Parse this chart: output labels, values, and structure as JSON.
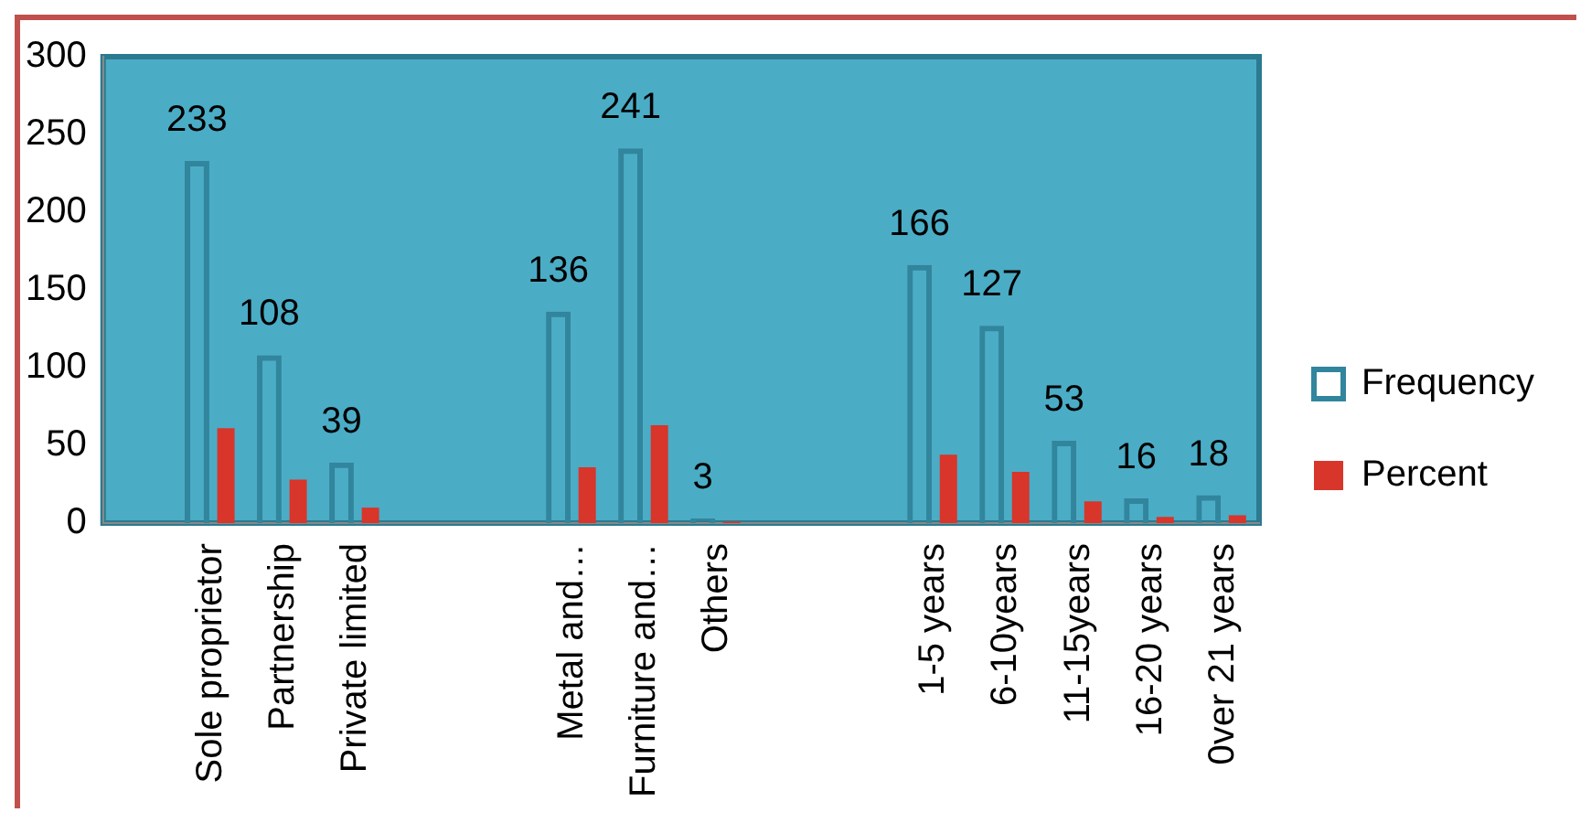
{
  "chart_data": {
    "type": "bar",
    "categories": [
      null,
      "Sole proprietor",
      "Partnership",
      "Private limited",
      null,
      null,
      "Metal and…",
      "Furniture and…",
      "Others",
      null,
      null,
      "1-5 years",
      "6-10years",
      "11-15years",
      "16-20 years",
      "0ver 21 years"
    ],
    "series": [
      {
        "name": "Frequency",
        "color": "#31859c",
        "values": [
          null,
          233,
          108,
          39,
          null,
          null,
          136,
          241,
          3,
          null,
          null,
          166,
          127,
          53,
          16,
          18
        ],
        "value_labels": [
          null,
          "233",
          "108",
          "39",
          null,
          null,
          "136",
          "241",
          "3",
          null,
          null,
          "166",
          "127",
          "53",
          "16",
          "18"
        ]
      },
      {
        "name": "Percent",
        "color": "#d8352b",
        "values": [
          null,
          61,
          28,
          10,
          null,
          null,
          36,
          63,
          1,
          null,
          null,
          44,
          33,
          14,
          4,
          5
        ]
      }
    ],
    "ylim": [
      0,
      300
    ],
    "yticks": [
      0,
      50,
      100,
      150,
      200,
      250,
      300
    ],
    "grid": false,
    "legend": "right"
  }
}
